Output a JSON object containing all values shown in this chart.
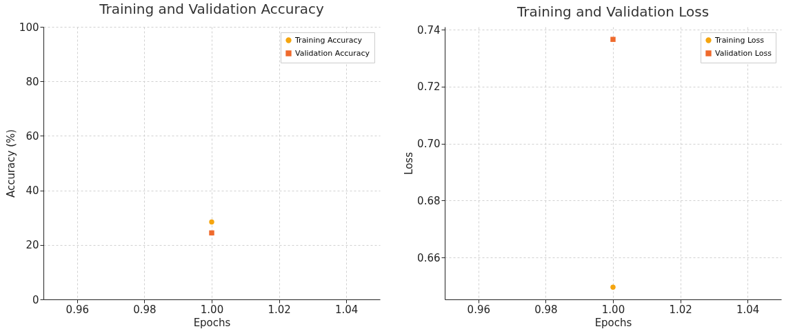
{
  "chart_data": [
    {
      "type": "line",
      "title": "Training and Validation Accuracy",
      "xlabel": "Epochs",
      "ylabel": "Accuracy (%)",
      "x": [
        1
      ],
      "series": [
        {
          "name": "Training Accuracy",
          "color": "#f5a50f",
          "values": [
            28.4
          ],
          "marker": "circle"
        },
        {
          "name": "Validation Accuracy",
          "color": "#ef6a2c",
          "values": [
            24.4
          ],
          "marker": "square"
        }
      ],
      "xlim": [
        0.95,
        1.05
      ],
      "xticks": [
        0.96,
        0.98,
        {
          "value": 1,
          "label": "1.00"
        },
        1.02,
        1.04
      ],
      "ylim": [
        0,
        100
      ],
      "yticks": [
        0,
        20,
        40,
        60,
        80,
        100
      ],
      "grid": true,
      "legend": "top right",
      "line_style": "solid"
    },
    {
      "type": "line",
      "title": "Training and Validation Loss",
      "xlabel": "Epochs",
      "ylabel": "Loss",
      "x": [
        1
      ],
      "series": [
        {
          "name": "Training Loss",
          "color": "#f5a50f",
          "values": [
            0.6496
          ],
          "marker": "circle"
        },
        {
          "name": "Validation Loss",
          "color": "#ef6a2c",
          "values": [
            0.7366
          ],
          "marker": "square"
        }
      ],
      "xlim": [
        0.95,
        1.05
      ],
      "xticks": [
        0.96,
        0.98,
        {
          "value": 1,
          "label": "1.00"
        },
        1.02,
        1.04
      ],
      "ylim": [
        0.6453,
        0.741
      ],
      "yticks": [
        0.66,
        0.68,
        {
          "value": 0.7,
          "label": "0.70"
        },
        0.72,
        0.74
      ],
      "grid": true,
      "legend": "top right",
      "line_style": "solid"
    }
  ]
}
